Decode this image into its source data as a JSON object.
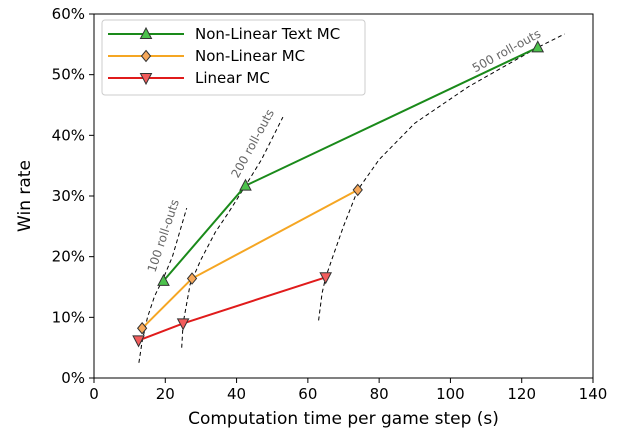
{
  "chart_data": {
    "type": "line",
    "xlabel": "Computation time per game step (s)",
    "ylabel": "Win rate",
    "xlim": [
      0,
      140
    ],
    "ylim": [
      0,
      0.6
    ],
    "xticks": [
      0,
      20,
      40,
      60,
      80,
      100,
      120,
      140
    ],
    "xtick_labels": [
      "0",
      "20",
      "40",
      "60",
      "80",
      "100",
      "120",
      "140"
    ],
    "yticks": [
      0,
      0.1,
      0.2,
      0.3,
      0.4,
      0.5,
      0.6
    ],
    "ytick_labels": [
      "0%",
      "10%",
      "20%",
      "30%",
      "40%",
      "50%",
      "60%"
    ],
    "grid": false,
    "legend_position": "top-left",
    "series": [
      {
        "name": "Non-Linear Text MC",
        "color": "#1a8a1a",
        "marker": "triangle-up",
        "marker_color": "#4cc24c",
        "x": [
          19.5,
          42.5,
          124.5
        ],
        "y": [
          0.16,
          0.317,
          0.545
        ]
      },
      {
        "name": "Non-Linear MC",
        "color": "#f5a623",
        "marker": "diamond",
        "marker_color": "#f7a85a",
        "x": [
          13.5,
          27.5,
          74.0
        ],
        "y": [
          0.082,
          0.164,
          0.31
        ]
      },
      {
        "name": "Linear MC",
        "color": "#e01b1b",
        "marker": "triangle-down",
        "marker_color": "#f25c5c",
        "x": [
          12.5,
          25.0,
          65.0
        ],
        "y": [
          0.062,
          0.09,
          0.166
        ]
      }
    ],
    "reference_curves": [
      {
        "label": "100 roll-outs",
        "x": [
          12.6,
          13.5,
          15.0,
          17.0,
          19.5,
          22.0,
          26.0
        ],
        "y": [
          0.025,
          0.06,
          0.1,
          0.135,
          0.165,
          0.2,
          0.28
        ]
      },
      {
        "label": "200 roll-outs",
        "x": [
          24.6,
          25.0,
          27.0,
          30.0,
          34.0,
          38.0,
          42.5,
          47.0,
          53.0
        ],
        "y": [
          0.05,
          0.09,
          0.155,
          0.195,
          0.24,
          0.275,
          0.317,
          0.36,
          0.43
        ]
      },
      {
        "label": "500 roll-outs",
        "x": [
          63.0,
          64.0,
          65.0,
          67.0,
          70.0,
          74.0,
          80.0,
          90.0,
          105.0,
          124.5,
          132.0
        ],
        "y": [
          0.095,
          0.14,
          0.166,
          0.2,
          0.25,
          0.31,
          0.36,
          0.42,
          0.48,
          0.545,
          0.567
        ]
      }
    ]
  }
}
